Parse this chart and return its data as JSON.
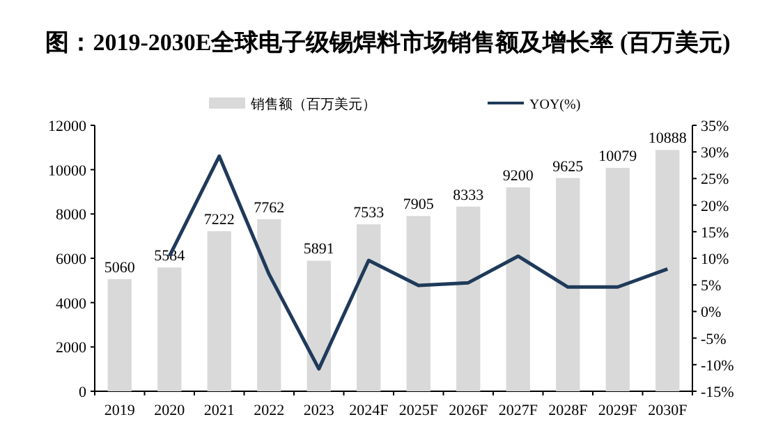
{
  "chart_data": {
    "type": "bar",
    "title": "图：2019-2030E全球电子级锡焊料市场销售额及增长率 (百万美元)",
    "categories": [
      "2019",
      "2020",
      "2021",
      "2022",
      "2023",
      "2024F",
      "2025F",
      "2026F",
      "2027F",
      "2028F",
      "2029F",
      "2030F"
    ],
    "series": [
      {
        "name": "销售额（百万美元）",
        "color": "#d9d9d9",
        "values": [
          5060,
          5584,
          7222,
          7762,
          5891,
          7533,
          7905,
          8333,
          9200,
          9625,
          10079,
          10888
        ],
        "value_labels": [
          "5060",
          "5584",
          "7222",
          "7762",
          "5891",
          "7533",
          "7905",
          "8333",
          "9200",
          "9625",
          "10079",
          "10888"
        ]
      },
      {
        "name": "YOY(%)",
        "type": "line",
        "axis": "y2",
        "color": "#1f3a5a",
        "values": [
          null,
          10.4,
          29.2,
          7,
          -10.8,
          9.6,
          4.9,
          5.4,
          10.4,
          4.6,
          4.6,
          8.0
        ]
      }
    ],
    "ylim": [
      0,
      12000
    ],
    "yticks": [
      0,
      2000,
      4000,
      6000,
      8000,
      10000,
      12000
    ],
    "y2lim": [
      -15,
      35
    ],
    "y2ticks": [
      {
        "value": -15,
        "label": "-15%"
      },
      {
        "value": -10,
        "label": "-10%"
      },
      {
        "value": -5,
        "label": "-5%"
      },
      {
        "value": 0,
        "label": "0%"
      },
      {
        "value": 5,
        "label": "5%"
      },
      {
        "value": 10,
        "label": "10%"
      },
      {
        "value": 15,
        "label": "15%"
      },
      {
        "value": 20,
        "label": "20%"
      },
      {
        "value": 25,
        "label": "25%"
      },
      {
        "value": 30,
        "label": "30%"
      },
      {
        "value": 35,
        "label": "35%"
      }
    ],
    "legend": "top"
  }
}
